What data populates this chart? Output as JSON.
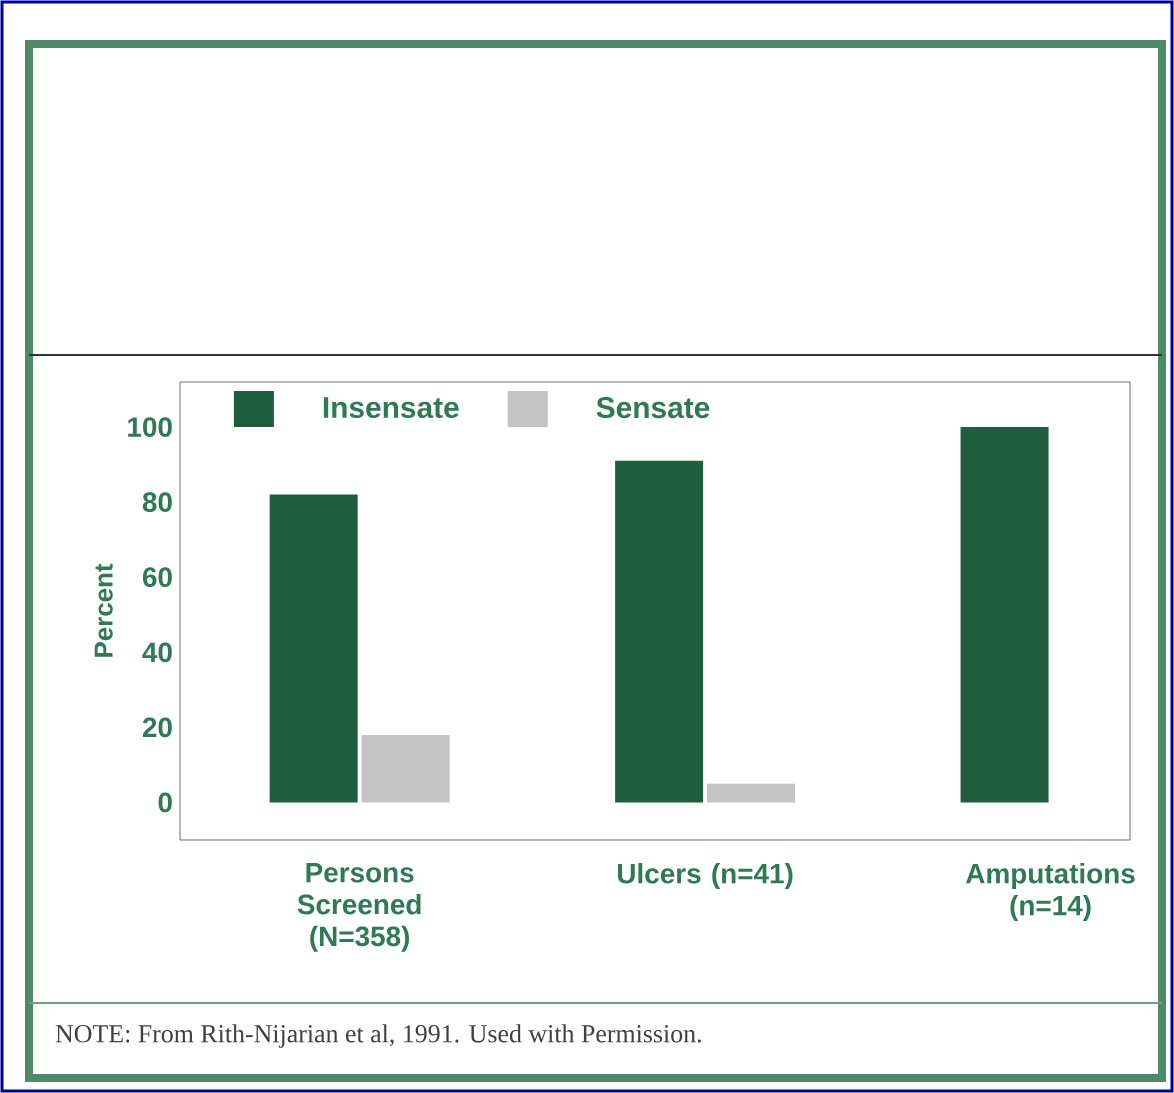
{
  "chart_data": {
    "type": "bar",
    "ylabel": "Percent",
    "categories": [
      "Persons Screened (N=358)",
      "Ulcers (n=41)",
      "Amputations (n=14)"
    ],
    "series": [
      {
        "name": "Insensate",
        "color": "#1e5e3e",
        "values": [
          82,
          91,
          100
        ]
      },
      {
        "name": "Sensate",
        "color": "#c4c4c4",
        "values": [
          18,
          5,
          0
        ]
      }
    ],
    "ylim": [
      -10,
      112
    ],
    "yticks": [
      0,
      20,
      40,
      60,
      80,
      100
    ],
    "legend": "top left",
    "grid": false,
    "annotations": [
      "NOTE: From Rith-Nijarian et al, 1991. Used with Permission."
    ]
  }
}
